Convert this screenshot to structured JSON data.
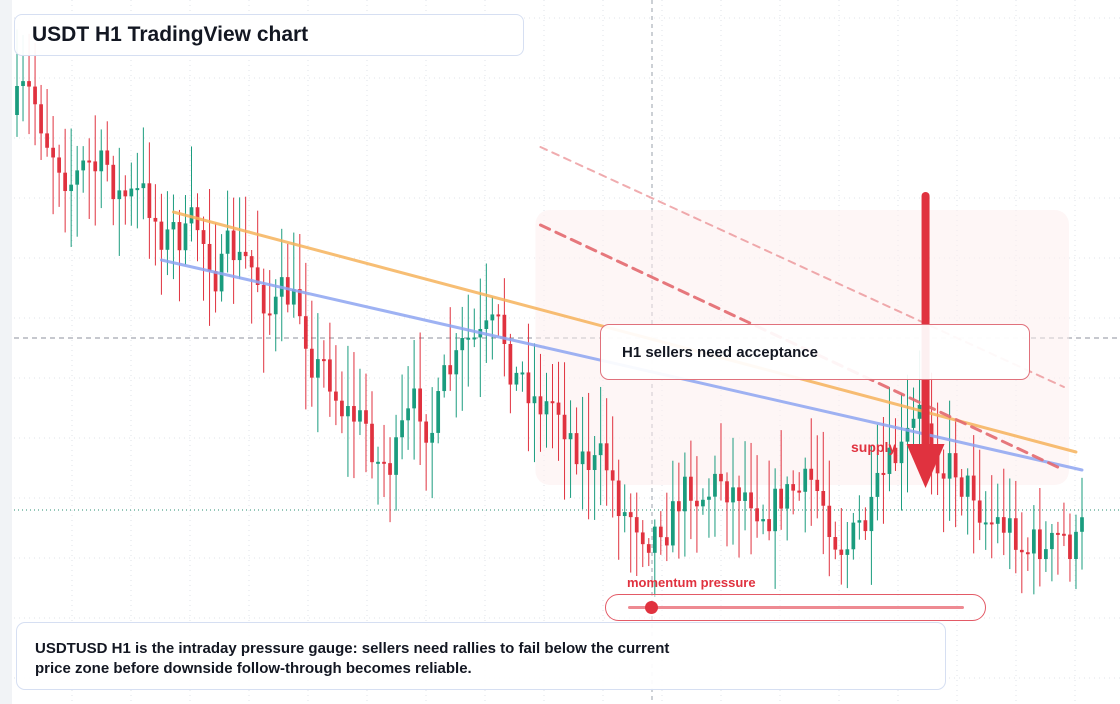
{
  "title": "USDT H1 TradingView chart",
  "annotations": {
    "note": "H1 sellers need acceptance",
    "supply_label": "supply",
    "momentum_label": "momentum pressure",
    "momentum_level": 0.07,
    "caption": "USDTUSD H1 is the intraday pressure gauge: sellers need rallies to fail below the current price zone before downside follow-through becomes reliable."
  },
  "colors": {
    "bull": "#1a9c7e",
    "bear": "#e0323f",
    "orange_trend": "#f6b35c",
    "blue_trend": "#8ea5f2",
    "red_dashed": "#e46a6f",
    "accent_red": "#e0323f"
  },
  "chart_data": {
    "type": "candlestick",
    "symbol": "USDTUSD",
    "timeframe": "H1",
    "candle_count": 178,
    "start_price": 115,
    "seed": 7,
    "y_range": [
      0,
      704
    ],
    "levels": {
      "crosshair_price": 338,
      "current_price": 510
    },
    "trendlines": [
      {
        "name": "orange",
        "from": [
          26,
          212
        ],
        "to": [
          176,
          452
        ],
        "style": "solid"
      },
      {
        "name": "blue",
        "from": [
          24,
          260
        ],
        "to": [
          177,
          470
        ],
        "style": "solid"
      },
      {
        "name": "red-a",
        "from": [
          87,
          225
        ],
        "to": [
          174,
          470
        ],
        "style": "dashed"
      },
      {
        "name": "red-b",
        "from": [
          87,
          147
        ],
        "to": [
          174,
          387
        ],
        "style": "dashed"
      }
    ],
    "supply_zone": {
      "from": 87,
      "to": 174,
      "top": 210,
      "bottom": 485
    },
    "arrow": {
      "candle": 151,
      "from": 196,
      "to": 488
    }
  }
}
